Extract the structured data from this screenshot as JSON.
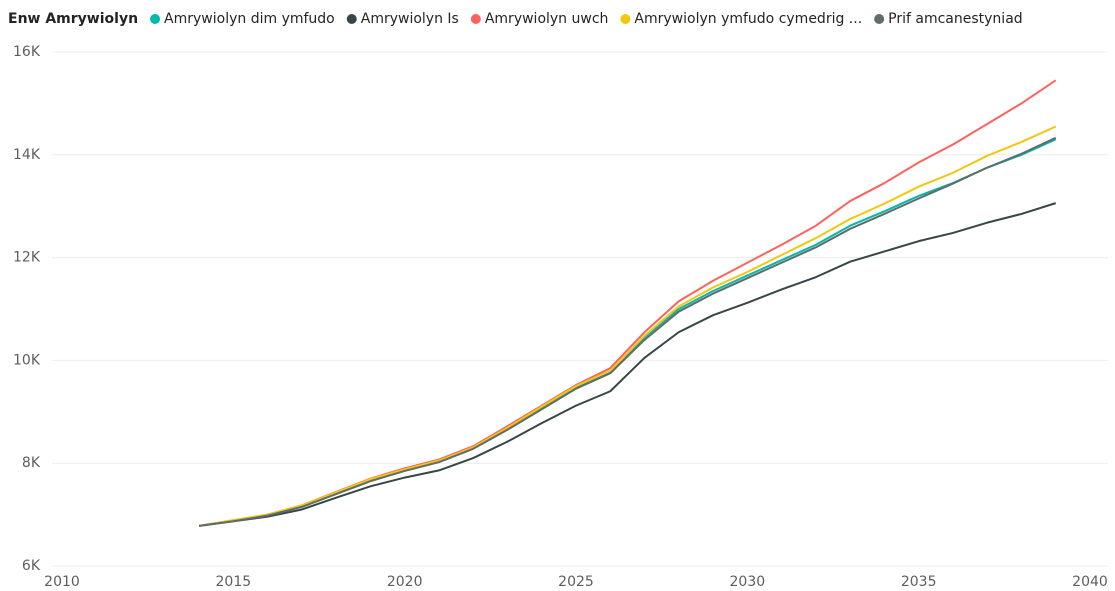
{
  "chart_data": {
    "type": "line",
    "legend_title": "Enw Amrywiolyn",
    "x": [
      2014,
      2015,
      2016,
      2017,
      2018,
      2019,
      2020,
      2021,
      2022,
      2023,
      2024,
      2025,
      2026,
      2027,
      2028,
      2029,
      2030,
      2031,
      2032,
      2033,
      2034,
      2035,
      2036,
      2037,
      2038,
      2039
    ],
    "series": [
      {
        "name": "Amrywiolyn dim ymfudo",
        "color": "#01b8aa",
        "values": [
          6780,
          6880,
          6990,
          7160,
          7420,
          7670,
          7870,
          8040,
          8300,
          8680,
          9080,
          9480,
          9780,
          10450,
          11000,
          11350,
          11650,
          11950,
          12250,
          12620,
          12900,
          13200,
          13450,
          13750,
          14000,
          14300
        ]
      },
      {
        "name": "Amrywiolyn Is",
        "color": "#374649",
        "values": [
          6780,
          6870,
          6960,
          7100,
          7330,
          7550,
          7720,
          7860,
          8100,
          8420,
          8780,
          9120,
          9400,
          10050,
          10550,
          10880,
          11120,
          11380,
          11620,
          11920,
          12120,
          12320,
          12480,
          12680,
          12850,
          13060
        ]
      },
      {
        "name": "Amrywiolyn uwch",
        "color": "#fd625e",
        "values": [
          6780,
          6890,
          7000,
          7180,
          7440,
          7700,
          7900,
          8070,
          8330,
          8720,
          9120,
          9520,
          9850,
          10550,
          11150,
          11550,
          11900,
          12250,
          12620,
          13100,
          13450,
          13850,
          14200,
          14600,
          15000,
          15450
        ]
      },
      {
        "name": "Amrywiolyn ymfudo cymedrig ...",
        "color": "#f2c80f",
        "values": [
          6780,
          6890,
          7000,
          7180,
          7430,
          7690,
          7880,
          8050,
          8310,
          8690,
          9100,
          9500,
          9800,
          10480,
          11050,
          11420,
          11720,
          12050,
          12380,
          12750,
          13050,
          13380,
          13650,
          13980,
          14250,
          14550
        ]
      },
      {
        "name": "Prif amcanestyniad",
        "color": "#5f6b6d",
        "values": [
          6780,
          6870,
          6980,
          7150,
          7400,
          7650,
          7850,
          8020,
          8280,
          8650,
          9050,
          9450,
          9750,
          10400,
          10950,
          11300,
          11600,
          11900,
          12200,
          12560,
          12850,
          13150,
          13440,
          13750,
          14020,
          14330
        ]
      }
    ],
    "xlim": [
      2010,
      2040
    ],
    "xticks": [
      2010,
      2015,
      2020,
      2025,
      2030,
      2035,
      2040
    ],
    "ylim": [
      6000,
      16000
    ],
    "yticks": [
      {
        "value": 6000,
        "label": "6K"
      },
      {
        "value": 8000,
        "label": "8K"
      },
      {
        "value": 10000,
        "label": "10K"
      },
      {
        "value": 12000,
        "label": "12K"
      },
      {
        "value": 14000,
        "label": "14K"
      },
      {
        "value": 16000,
        "label": "16K"
      }
    ],
    "grid": true
  }
}
